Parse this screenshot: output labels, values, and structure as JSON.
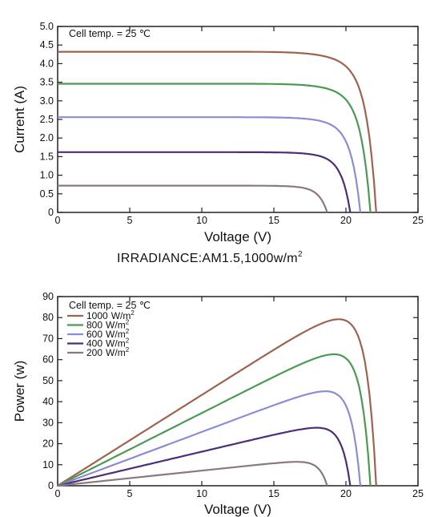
{
  "chart_data": [
    {
      "type": "line",
      "xlabel": "Voltage (V)",
      "ylabel": "Current (A)",
      "xlim": [
        0,
        25
      ],
      "ylim": [
        0,
        5.0
      ],
      "x_ticks": [
        "0",
        "5",
        "10",
        "15",
        "20",
        "25"
      ],
      "y_ticks": [
        "0",
        "0.5",
        "1.0",
        "1.5",
        "2.0",
        "2.5",
        "3.0",
        "3.5",
        "4.0",
        "4.5",
        "5.0"
      ],
      "annotation": "Cell temp. = 25 ℃",
      "caption_main": "IRRADIANCE:AM1.5,1000w/m",
      "caption_sup": "2",
      "grid": false,
      "series": [
        {
          "color": "#a0624e",
          "isc": 4.32,
          "voc": 22.1,
          "a": 1.05,
          "b": 1.3
        },
        {
          "color": "#4a9a52",
          "isc": 3.46,
          "voc": 21.7,
          "a": 1.1,
          "b": 1.3
        },
        {
          "color": "#8c8cd6",
          "isc": 2.56,
          "voc": 21.0,
          "a": 1.15,
          "b": 1.3
        },
        {
          "color": "#4b2d7a",
          "isc": 1.62,
          "voc": 20.3,
          "a": 1.2,
          "b": 1.3
        },
        {
          "color": "#8a7a7a",
          "isc": 0.72,
          "voc": 18.7,
          "a": 1.3,
          "b": 1.3
        }
      ]
    },
    {
      "type": "line",
      "xlabel": "Voltage (V)",
      "ylabel": "Power (w)",
      "xlim": [
        0,
        25
      ],
      "ylim": [
        0,
        90
      ],
      "x_ticks": [
        "0",
        "5",
        "10",
        "15",
        "20",
        "25"
      ],
      "y_ticks": [
        "0",
        "10",
        "20",
        "30",
        "40",
        "50",
        "60",
        "70",
        "80",
        "90"
      ],
      "annotation": "Cell temp. = 25 ℃",
      "grid": false,
      "legend_position": "top-left",
      "series": [
        {
          "legend_value": "1000",
          "legend_unit": "W/m",
          "legend_sup": "2",
          "color": "#a0624e",
          "isc": 4.32,
          "voc": 22.1,
          "a": 1.05,
          "b": 1.3
        },
        {
          "legend_value": "800",
          "legend_unit": "W/m",
          "legend_sup": "2",
          "color": "#4a9a52",
          "isc": 3.46,
          "voc": 21.7,
          "a": 1.1,
          "b": 1.3
        },
        {
          "legend_value": "600",
          "legend_unit": "W/m",
          "legend_sup": "2",
          "color": "#8c8cd6",
          "isc": 2.56,
          "voc": 21.0,
          "a": 1.15,
          "b": 1.3
        },
        {
          "legend_value": "400",
          "legend_unit": "W/m",
          "legend_sup": "2",
          "color": "#4b2d7a",
          "isc": 1.62,
          "voc": 20.3,
          "a": 1.2,
          "b": 1.3
        },
        {
          "legend_value": "200",
          "legend_unit": "W/m",
          "legend_sup": "2",
          "color": "#8a7a7a",
          "isc": 0.72,
          "voc": 18.7,
          "a": 1.3,
          "b": 1.3
        }
      ]
    }
  ]
}
